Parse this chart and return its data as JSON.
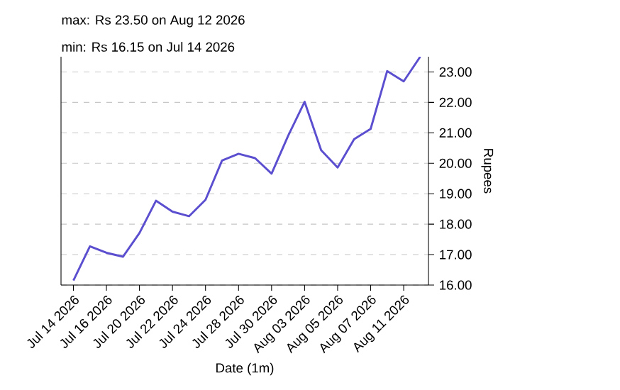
{
  "chart_data": {
    "type": "line",
    "annotations": [
      "max: Rs 23.50 on Aug 12 2026",
      "min: Rs 16.15 on Jul 14 2026"
    ],
    "xlabel": "Date (1m)",
    "ylabel": "Rupees",
    "categories": [
      "Jul 14 2026",
      null,
      "Jul 16 2026",
      null,
      "Jul 20 2026",
      null,
      "Jul 22 2026",
      null,
      "Jul 24 2026",
      null,
      "Jul 28 2026",
      null,
      "Jul 30 2026",
      null,
      "Aug 03 2026",
      null,
      "Aug 05 2026",
      null,
      "Aug 07 2026",
      null,
      "Aug 11 2026",
      null
    ],
    "series": [
      {
        "color": "#5b4fd0",
        "values": [
          16.15,
          17.27,
          17.06,
          16.93,
          17.71,
          18.77,
          18.41,
          18.26,
          18.8,
          20.09,
          20.31,
          20.17,
          19.66,
          20.9,
          22.02,
          20.43,
          19.86,
          20.79,
          21.13,
          23.03,
          22.69,
          23.5
        ]
      }
    ],
    "ylim": [
      16,
      23.5
    ],
    "yticks": [
      {
        "value": 16,
        "label": "16.00"
      },
      {
        "value": 17,
        "label": "17.00"
      },
      {
        "value": 18,
        "label": "18.00"
      },
      {
        "value": 19,
        "label": "19.00"
      },
      {
        "value": 20,
        "label": "20.00"
      },
      {
        "value": 21,
        "label": "21.00"
      },
      {
        "value": 22,
        "label": "22.00"
      },
      {
        "value": 23,
        "label": "23.00"
      }
    ],
    "grid": "y",
    "marker": "none",
    "line_style": "solid"
  }
}
